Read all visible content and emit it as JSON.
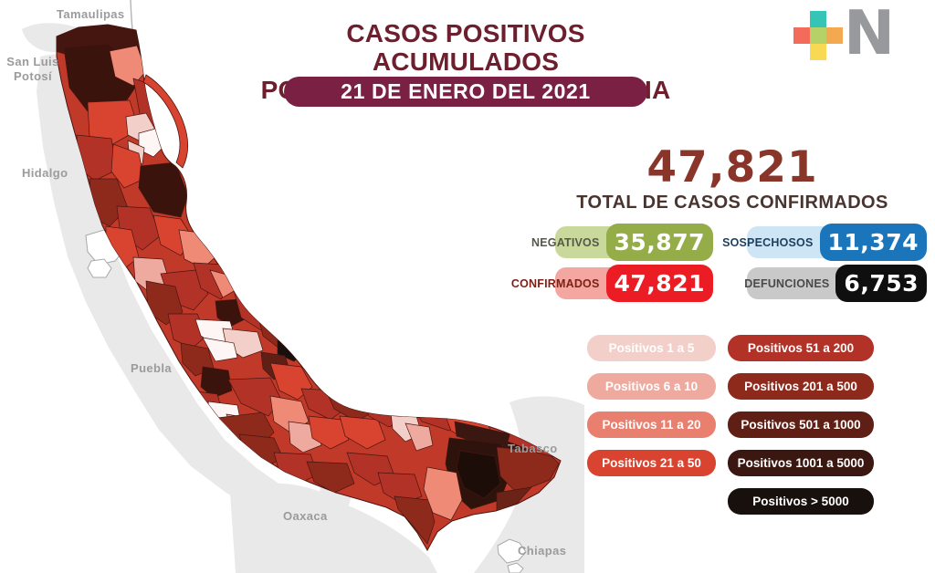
{
  "header": {
    "title_lines": [
      "CASOS POSITIVOS ACUMULADOS",
      "POR MUNICIPIO DE RESIDENCIA"
    ],
    "date_banner": "21 DE ENERO DEL 2021",
    "logo": {
      "letter": "N",
      "plus_colors": {
        "top": "#35c4b5",
        "left": "#f26b5b",
        "center": "#b5d168",
        "right": "#f4a950",
        "bottom": "#f7d954"
      }
    }
  },
  "summary": {
    "total_value": "47,821",
    "total_caption": "TOTAL DE CASOS CONFIRMADOS"
  },
  "stats": [
    {
      "label": "NEGATIVOS",
      "value": "35,877",
      "pill_color": "#c9d89b",
      "value_color": "#94ad49",
      "label_color": "#55584a"
    },
    {
      "label": "SOSPECHOSOS",
      "value": "11,374",
      "pill_color": "#cde5f4",
      "value_color": "#1b75bb",
      "label_color": "#1c3f5e"
    },
    {
      "label": "CONFIRMADOS",
      "value": "47,821",
      "pill_color": "#f4a6a1",
      "value_color": "#ec1c24",
      "label_color": "#7c2219"
    },
    {
      "label": "DEFUNCIONES",
      "value": "6,753",
      "pill_color": "#c9c9c9",
      "value_color": "#0f0f0f",
      "label_color": "#4a4a4a"
    }
  ],
  "legend": {
    "columns": [
      [
        {
          "label": "Positivos 1 a 5",
          "color": "#f2d0c9"
        },
        {
          "label": "Positivos 6 a 10",
          "color": "#efaaa0"
        },
        {
          "label": "Positivos 11 a 20",
          "color": "#e97f6f"
        },
        {
          "label": "Positivos 21 a 50",
          "color": "#d8442f"
        }
      ],
      [
        {
          "label": "Positivos 51 a 200",
          "color": "#b23227"
        },
        {
          "label": "Positivos 201 a 500",
          "color": "#8e2a1c"
        },
        {
          "label": "Positivos 501 a 1000",
          "color": "#5f1f15"
        },
        {
          "label": "Positivos 1001 a 5000",
          "color": "#3a1710"
        },
        {
          "label": "Positivos > 5000",
          "color": "#17100d"
        }
      ]
    ]
  },
  "map": {
    "labels": {
      "tamaulipas": "Tamaulipas",
      "san_luis_potosi": "San Luis\nPotosí",
      "hidalgo": "Hidalgo",
      "puebla": "Puebla",
      "oaxaca": "Oaxaca",
      "tabasco": "Tabasco",
      "chiapas": "Chiapas"
    }
  },
  "colors": {
    "title": "#6d1f2e",
    "date_banner_bg": "#7a2143",
    "total_number": "#8a352a",
    "total_caption": "#4a342f",
    "neighbor_states": "#e9e9e9",
    "map_base": "#c13a29",
    "map_border": "#4a1510"
  }
}
